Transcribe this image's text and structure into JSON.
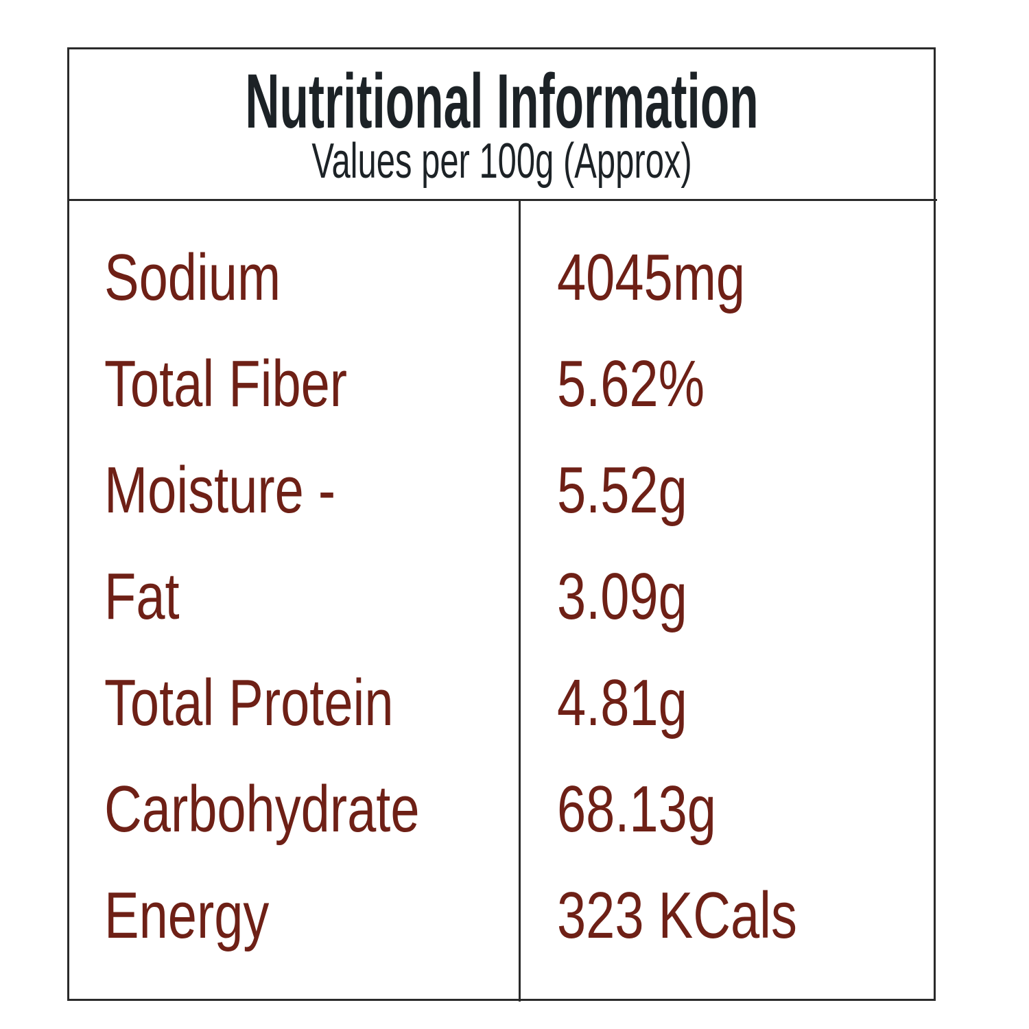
{
  "header": {
    "title": "Nutritional Information",
    "subtitle": "Values per 100g (Approx)"
  },
  "rows": [
    {
      "label": "Sodium",
      "value": "4045mg"
    },
    {
      "label": "Total Fiber",
      "value": "5.62%"
    },
    {
      "label": "Moisture -",
      "value": "5.52g"
    },
    {
      "label": "Fat",
      "value": "3.09g"
    },
    {
      "label": "Total Protein",
      "value": "4.81g"
    },
    {
      "label": "Carbohydrate",
      "value": "68.13g"
    },
    {
      "label": "Energy",
      "value": "323 KCals"
    }
  ],
  "colors": {
    "text": "#6e2016",
    "heading": "#1c2226",
    "border": "#2a2a2a"
  }
}
